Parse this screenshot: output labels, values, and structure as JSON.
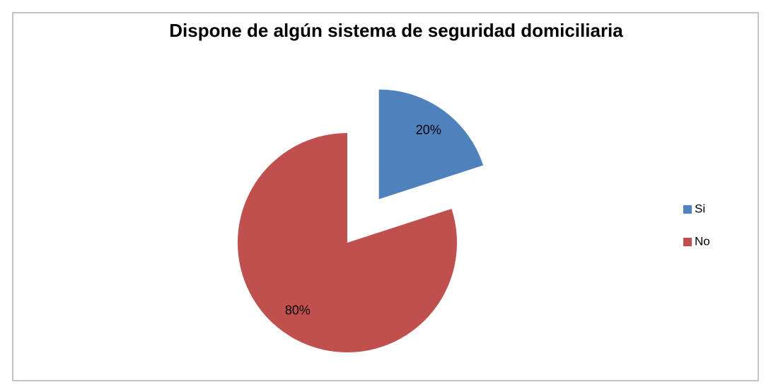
{
  "chart_data": {
    "type": "pie",
    "title": "Dispone de algún sistema de seguridad domiciliaria",
    "categories": [
      "Si",
      "No"
    ],
    "values": [
      20,
      80
    ],
    "value_labels": [
      "20%",
      "80%"
    ],
    "colors": [
      "#4f81bd",
      "#c0504d"
    ],
    "exploded": [
      true,
      false
    ],
    "legend": "right"
  }
}
